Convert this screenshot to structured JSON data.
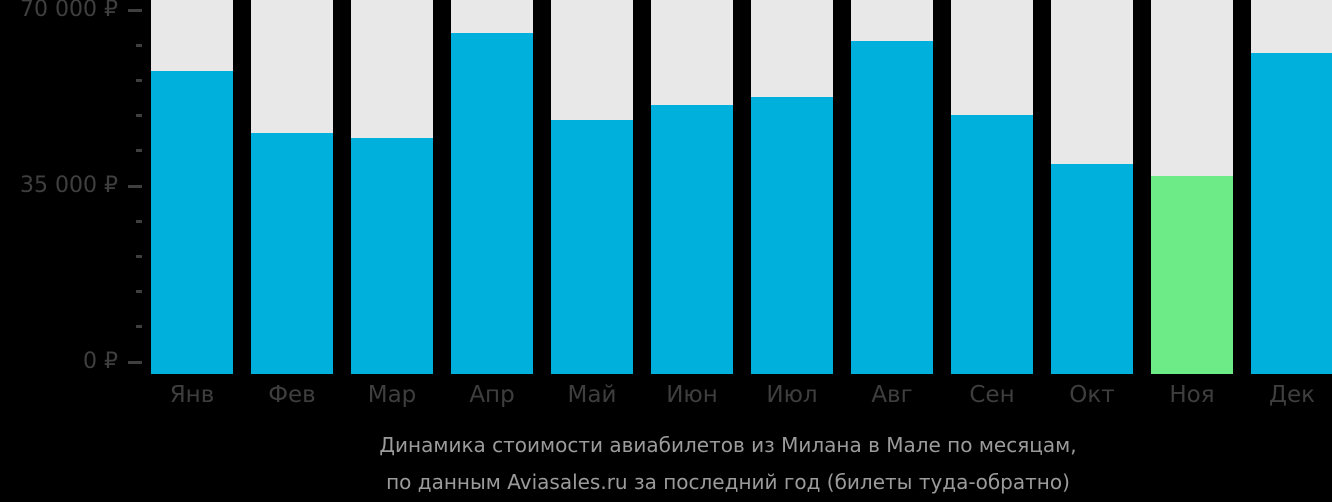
{
  "chart_data": {
    "type": "bar",
    "title": "Динамика стоимости авиабилетов из Милана в Мале по месяцам,",
    "subtitle": "по данным Aviasales.ru за последний год (билеты туда-обратно)",
    "categories": [
      "Янв",
      "Фев",
      "Мар",
      "Апр",
      "Май",
      "Июн",
      "Июл",
      "Авг",
      "Сен",
      "Окт",
      "Ноя",
      "Дек"
    ],
    "category_keys": [
      "jan",
      "feb",
      "mar",
      "apr",
      "may",
      "jun",
      "jul",
      "aug",
      "sep",
      "oct",
      "nov",
      "dec"
    ],
    "values": [
      57900,
      45500,
      44500,
      65400,
      48100,
      51100,
      52800,
      63900,
      49100,
      39300,
      37000,
      61500
    ],
    "unit": "₽",
    "ylim": [
      0,
      70000
    ],
    "y_major_ticks": [
      {
        "value": 0,
        "label": "0 ₽"
      },
      {
        "value": 35000,
        "label": "35 000 ₽"
      },
      {
        "value": 70000,
        "label": "70 000 ₽"
      }
    ],
    "y_minor_tick_step": 7000,
    "grid": false,
    "legend": "none",
    "highlight": {
      "index": 10,
      "category": "Ноя"
    },
    "colors": {
      "bar": "#00b0dc",
      "highlight": "#6ceb86",
      "column_background": "#e8e8e8",
      "page_background": "#000000",
      "axis_text": "#3f3f3f",
      "month_text": "#3e3e3e",
      "caption_text": "#9b9b9b"
    }
  }
}
